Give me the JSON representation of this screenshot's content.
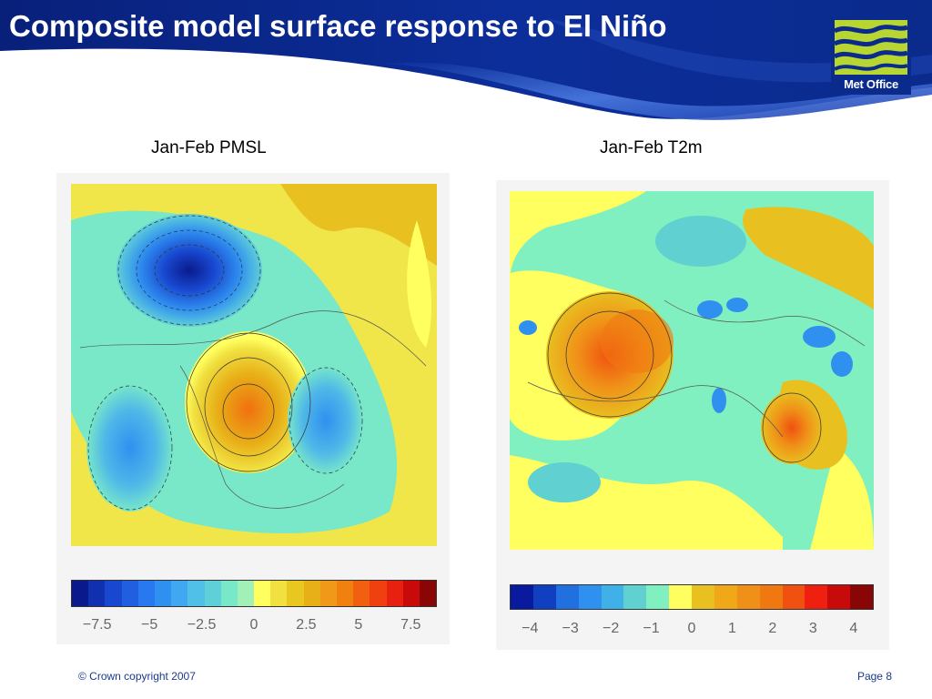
{
  "title": "Composite model surface response to El Niño",
  "logo": {
    "text": "Met Office",
    "icon": "met-office-waves-icon"
  },
  "colors": {
    "header_blue": "#0a2a8c",
    "header_light": "#3a6ad8",
    "logo_green": "#b8d632"
  },
  "panels": [
    {
      "title": "Jan-Feb PMSL",
      "colors": [
        "#0a1a8c",
        "#1030b0",
        "#1848d0",
        "#2060e0",
        "#2878f0",
        "#3090f0",
        "#40a8f0",
        "#50c0e8",
        "#60d0d8",
        "#78e8c8",
        "#a0f0b8",
        "#ffff60",
        "#f0e040",
        "#e8c820",
        "#e8b018",
        "#f09818",
        "#f08010",
        "#f06010",
        "#f04010",
        "#e82010",
        "#c80a0a",
        "#8a0606"
      ],
      "tick_labels": [
        "−7.5",
        "−5",
        "−2.5",
        "0",
        "2.5",
        "5",
        "7.5"
      ]
    },
    {
      "title": "Jan-Feb T2m",
      "colors": [
        "#0a1aa0",
        "#1040c0",
        "#2070e0",
        "#3090f0",
        "#40b0e8",
        "#60d0d0",
        "#80f0c0",
        "#ffff60",
        "#e8c020",
        "#f0a818",
        "#f09018",
        "#f07810",
        "#f05010",
        "#f02010",
        "#c80a0a",
        "#8a0606"
      ],
      "tick_labels": [
        "−4",
        "−3",
        "−2",
        "−1",
        "0",
        "1",
        "2",
        "3",
        "4"
      ]
    }
  ],
  "footer": {
    "copyright": "© Crown copyright 2007",
    "page": "Page 8"
  }
}
